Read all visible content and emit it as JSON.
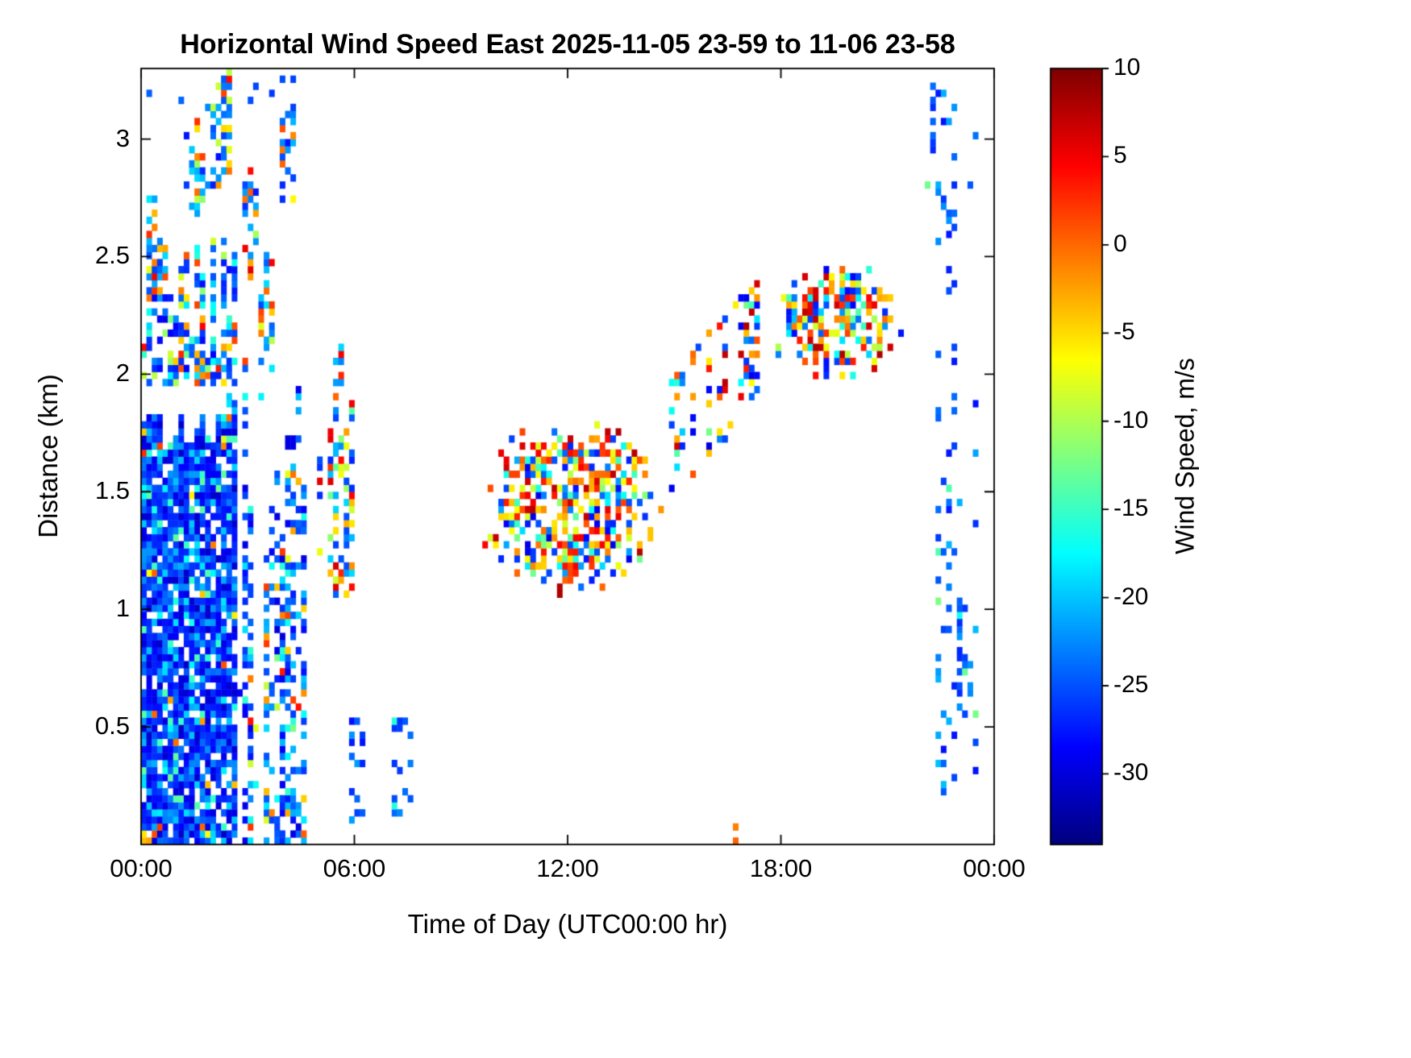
{
  "chart_data": {
    "type": "heatmap",
    "title": "Horizontal Wind Speed East 2025-11-05 23-59 to 11-06 23-58",
    "xlabel": "Time of Day (UTC00:00 hr)",
    "ylabel": "Distance (km)",
    "x": {
      "range_hours": [
        0,
        24
      ],
      "ticks": [
        {
          "h": 0,
          "label": "00:00"
        },
        {
          "h": 6,
          "label": "06:00"
        },
        {
          "h": 12,
          "label": "12:00"
        },
        {
          "h": 18,
          "label": "18:00"
        },
        {
          "h": 24,
          "label": "00:00"
        }
      ]
    },
    "y": {
      "range_km": [
        0,
        3.3
      ],
      "ticks": [
        {
          "v": 0.5,
          "label": "0.5"
        },
        {
          "v": 1,
          "label": "1"
        },
        {
          "v": 1.5,
          "label": "1.5"
        },
        {
          "v": 2,
          "label": "2"
        },
        {
          "v": 2.5,
          "label": "2.5"
        },
        {
          "v": 3,
          "label": "3"
        }
      ]
    },
    "colorbar": {
      "label": "Wind Speed, m/s",
      "colormap": "jet",
      "range": [
        -34,
        10
      ],
      "ticks": [
        {
          "v": 10,
          "label": "10"
        },
        {
          "v": 5,
          "label": "5"
        },
        {
          "v": 0,
          "label": "0"
        },
        {
          "v": -5,
          "label": "-5"
        },
        {
          "v": -10,
          "label": "-10"
        },
        {
          "v": -15,
          "label": "-15"
        },
        {
          "v": -20,
          "label": "-20"
        },
        {
          "v": -25,
          "label": "-25"
        },
        {
          "v": -30,
          "label": "-30"
        }
      ]
    },
    "grid": {
      "nt": 160,
      "nz": 110
    },
    "regions": [
      {
        "name": "storm-core",
        "t": [
          0,
          2.7
        ],
        "z": [
          0,
          1.95
        ],
        "density": 0.94,
        "top_jitter": 0.15,
        "grad_t": [
          1,
          0.9
        ],
        "values": [
          {
            "r": [
              -31,
              -26
            ],
            "w": 0.46
          },
          {
            "r": [
              -27,
              -22
            ],
            "w": 0.3
          },
          {
            "r": [
              -23,
              -18
            ],
            "w": 0.15
          },
          {
            "r": [
              -18,
              -13
            ],
            "w": 0.06
          },
          {
            "r": [
              -8,
              3
            ],
            "w": 0.03
          }
        ]
      },
      {
        "name": "storm-upper",
        "t": [
          0,
          2.75
        ],
        "z": [
          1.95,
          2.68
        ],
        "density": 0.62,
        "top_jitter": 0.8,
        "column_var": 0.35,
        "values": [
          {
            "r": [
              -29,
              -22
            ],
            "w": 0.5
          },
          {
            "r": [
              -22,
              -15
            ],
            "w": 0.2
          },
          {
            "r": [
              -13,
              -7
            ],
            "w": 0.12
          },
          {
            "r": [
              -6,
              5
            ],
            "w": 0.18
          }
        ]
      },
      {
        "name": "storm-peak-0015",
        "t": [
          0.05,
          0.55
        ],
        "z": [
          2.3,
          2.8
        ],
        "density": 0.55,
        "soft": true,
        "values": [
          {
            "r": [
              -6,
              5
            ],
            "w": 0.4
          },
          {
            "r": [
              -12,
              -6
            ],
            "w": 0.22
          },
          {
            "r": [
              -26,
              -18
            ],
            "w": 0.38
          }
        ]
      },
      {
        "name": "storm-peak-0130",
        "t": [
          1.25,
          1.8
        ],
        "z": [
          2.6,
          3.08
        ],
        "density": 0.5,
        "soft": true,
        "values": [
          {
            "r": [
              -6,
              5
            ],
            "w": 0.3
          },
          {
            "r": [
              -12,
              -6
            ],
            "w": 0.2
          },
          {
            "r": [
              -27,
              -19
            ],
            "w": 0.5
          }
        ]
      },
      {
        "name": "storm-peak-0215",
        "t": [
          1.95,
          2.55
        ],
        "z": [
          2.8,
          3.34
        ],
        "density": 0.5,
        "column_prob": 0.85,
        "values": [
          {
            "r": [
              -28,
              -20
            ],
            "w": 0.55
          },
          {
            "r": [
              -10,
              -4
            ],
            "w": 0.2
          },
          {
            "r": [
              -3,
              5
            ],
            "w": 0.25
          }
        ]
      },
      {
        "name": "storm-peak-0300",
        "t": [
          2.8,
          3.3
        ],
        "z": [
          2.35,
          2.92
        ],
        "density": 0.55,
        "soft": true,
        "values": [
          {
            "r": [
              -4,
              6
            ],
            "w": 0.38
          },
          {
            "r": [
              -11,
              -5
            ],
            "w": 0.25
          },
          {
            "r": [
              -27,
              -19
            ],
            "w": 0.37
          }
        ]
      },
      {
        "name": "storm-late-columns",
        "t": [
          2.7,
          4.6
        ],
        "z": [
          0,
          2.35
        ],
        "density": 0.68,
        "column_prob": 0.78,
        "column_var": 0.5,
        "top_jitter": 0.45,
        "values": [
          {
            "r": [
              -30,
              -24
            ],
            "w": 0.44
          },
          {
            "r": [
              -26,
              -20
            ],
            "w": 0.3
          },
          {
            "r": [
              -21,
              -15
            ],
            "w": 0.14
          },
          {
            "r": [
              -13,
              -7
            ],
            "w": 0.06
          },
          {
            "r": [
              -6,
              4
            ],
            "w": 0.06
          }
        ]
      },
      {
        "name": "storm-streak-0330",
        "t": [
          3.3,
          3.78
        ],
        "z": [
          1.9,
          2.58
        ],
        "density": 0.5,
        "soft": true,
        "values": [
          {
            "r": [
              -5,
              5
            ],
            "w": 0.35
          },
          {
            "r": [
              -12,
              -6
            ],
            "w": 0.25
          },
          {
            "r": [
              -26,
              -18
            ],
            "w": 0.4
          }
        ]
      },
      {
        "name": "storm-peak-0415",
        "t": [
          3.95,
          4.5
        ],
        "z": [
          2.72,
          3.32
        ],
        "density": 0.45,
        "column_prob": 0.8,
        "values": [
          {
            "r": [
              -28,
              -20
            ],
            "w": 0.62
          },
          {
            "r": [
              -10,
              -3
            ],
            "w": 0.2
          },
          {
            "r": [
              -2,
              5
            ],
            "w": 0.18
          }
        ]
      },
      {
        "name": "storm-top-scatter",
        "t": [
          0.2,
          4.6
        ],
        "z": [
          2.7,
          3.34
        ],
        "density": 0.05,
        "column_prob": 0.5,
        "values": [
          {
            "r": [
              -28,
              -20
            ],
            "w": 1
          }
        ]
      },
      {
        "name": "dawn-band",
        "t": [
          4.95,
          5.95
        ],
        "z": [
          1.05,
          2.15
        ],
        "density": 0.45,
        "column_prob": 0.85,
        "column_var": 0.35,
        "top_jitter": 0.3,
        "values": [
          {
            "r": [
              -27,
              -19
            ],
            "w": 0.38
          },
          {
            "r": [
              -14,
              -7
            ],
            "w": 0.2
          },
          {
            "r": [
              -6,
              -1
            ],
            "w": 0.2
          },
          {
            "r": [
              0,
              7
            ],
            "w": 0.22
          }
        ]
      },
      {
        "name": "dawn-specks-1",
        "t": [
          5.9,
          6.3
        ],
        "z": [
          0.1,
          0.6
        ],
        "density": 0.22,
        "values": [
          {
            "r": [
              -28,
              -21
            ],
            "w": 1
          }
        ]
      },
      {
        "name": "dawn-specks-2",
        "t": [
          7,
          7.6
        ],
        "z": [
          0.1,
          0.62
        ],
        "density": 0.2,
        "values": [
          {
            "r": [
              -28,
              -21
            ],
            "w": 0.9
          },
          {
            "r": [
              -16,
              -10
            ],
            "w": 0.1
          }
        ]
      },
      {
        "name": "midday-cluster",
        "t": [
          9.55,
          14.7
        ],
        "z": [
          1.05,
          1.82
        ],
        "density": 0.68,
        "soft": true,
        "column_var": 0.25,
        "values": [
          {
            "r": [
              0,
              8
            ],
            "w": 0.3
          },
          {
            "r": [
              -6,
              0
            ],
            "w": 0.2
          },
          {
            "r": [
              -30,
              -21
            ],
            "w": 0.24
          },
          {
            "r": [
              -19,
              -11
            ],
            "w": 0.11
          },
          {
            "r": [
              -10,
              -4
            ],
            "w": 0.15
          }
        ]
      },
      {
        "name": "afternoon-rise",
        "t": [
          14.85,
          17.45
        ],
        "z": [
          1.45,
          2.0
        ],
        "rise": 0.42,
        "density": 0.4,
        "column_prob": 0.6,
        "column_var": 0.35,
        "values": [
          {
            "r": [
              0,
              8
            ],
            "w": 0.3
          },
          {
            "r": [
              -30,
              -22
            ],
            "w": 0.3
          },
          {
            "r": [
              -7,
              -1
            ],
            "w": 0.2
          },
          {
            "r": [
              -20,
              -12
            ],
            "w": 0.2
          }
        ]
      },
      {
        "name": "evening-cluster",
        "t": [
          17.7,
          21.45
        ],
        "z": [
          1.95,
          2.5
        ],
        "density": 0.6,
        "soft": true,
        "column_var": 0.3,
        "values": [
          {
            "r": [
              0,
              8
            ],
            "w": 0.28
          },
          {
            "r": [
              -6,
              0
            ],
            "w": 0.16
          },
          {
            "r": [
              -29,
              -21
            ],
            "w": 0.24
          },
          {
            "r": [
              -20,
              -13
            ],
            "w": 0.18
          },
          {
            "r": [
              -11,
              -5
            ],
            "w": 0.14
          }
        ]
      },
      {
        "name": "bottom-speck-1645",
        "t": [
          16.65,
          16.9
        ],
        "z": [
          0,
          0.1
        ],
        "density": 0.5,
        "values": [
          {
            "r": [
              -2,
              5
            ],
            "w": 0.5
          },
          {
            "r": [
              -28,
              -22
            ],
            "w": 0.5
          }
        ]
      },
      {
        "name": "night-scatter",
        "t": [
          22.1,
          23.6
        ],
        "z": [
          0.2,
          3.28
        ],
        "density": 0.12,
        "column_prob": 0.55,
        "column_var": 0.4,
        "values": [
          {
            "r": [
              -28,
              -20
            ],
            "w": 0.95
          },
          {
            "r": [
              -18,
              -12
            ],
            "w": 0.05
          }
        ]
      },
      {
        "name": "night-low-cluster",
        "t": [
          23,
          23.45
        ],
        "z": [
          0.55,
          1.08
        ],
        "density": 0.6,
        "column_var": 0.25,
        "values": [
          {
            "r": [
              -28,
              -21
            ],
            "w": 0.9
          },
          {
            "r": [
              -19,
              -13
            ],
            "w": 0.1
          }
        ]
      },
      {
        "name": "night-top-dash",
        "t": [
          22.15,
          22.4
        ],
        "z": [
          2.95,
          3.25
        ],
        "density": 0.5,
        "values": [
          {
            "r": [
              -27,
              -21
            ],
            "w": 1
          }
        ]
      }
    ]
  }
}
